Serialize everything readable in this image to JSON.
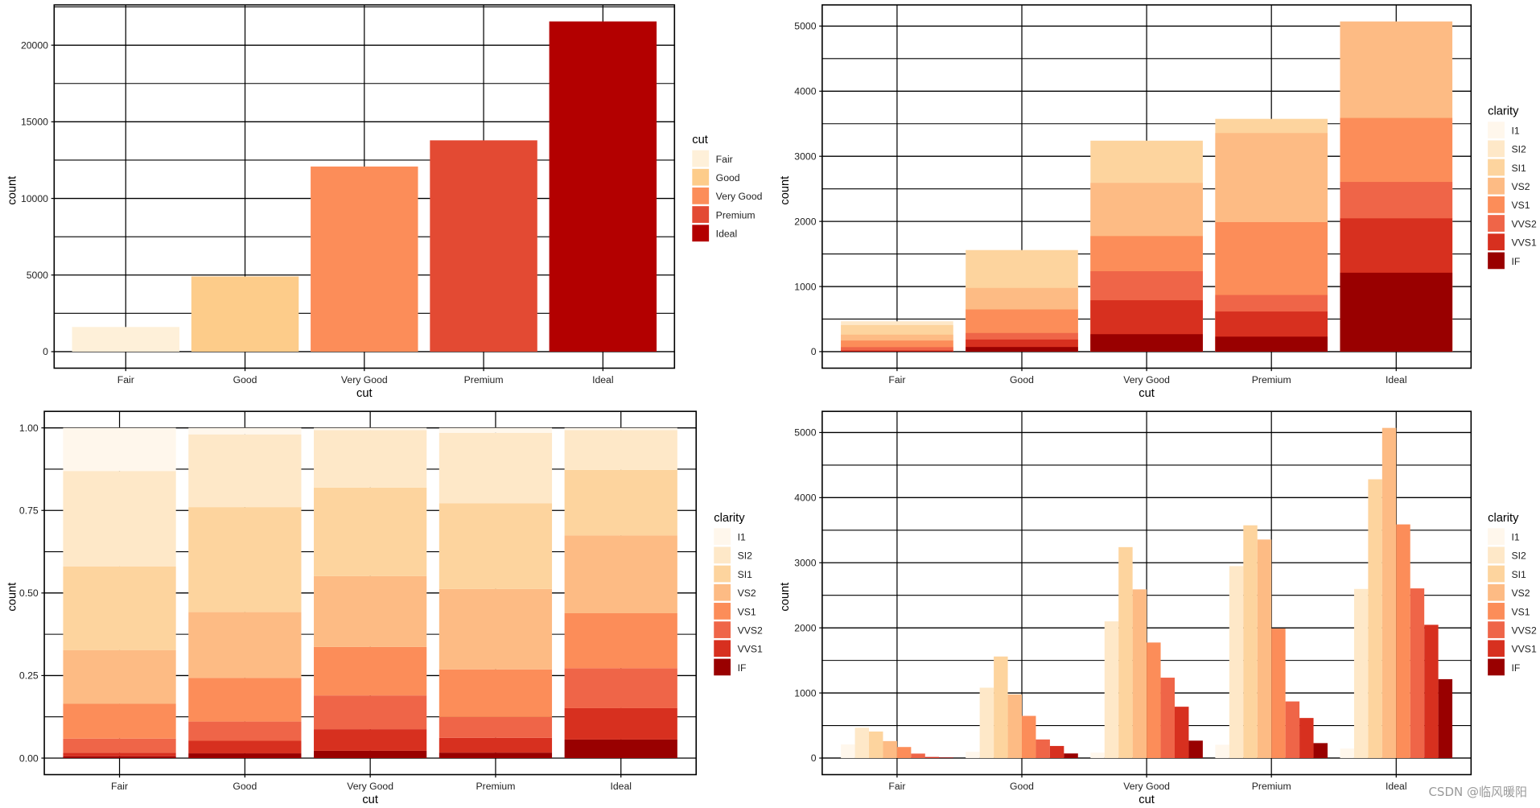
{
  "palette_cut": [
    "#FEF0D9",
    "#FDCC8A",
    "#FC8D59",
    "#E34A33",
    "#B30000"
  ],
  "palette_clarity": [
    "#FFF7EC",
    "#FEE8C8",
    "#FDD49E",
    "#FDBB84",
    "#FC8D59",
    "#EF6548",
    "#D7301F",
    "#990000"
  ],
  "watermark": "CSDN @临风暖阳",
  "chart_data": [
    {
      "type": "bar",
      "position": "stack",
      "xlabel": "cut",
      "ylabel": "count",
      "legend_title": "cut",
      "legend_placement": "right",
      "categories": [
        "Fair",
        "Good",
        "Very Good",
        "Premium",
        "Ideal"
      ],
      "values": [
        1610,
        4906,
        12082,
        13791,
        21551
      ],
      "yticks": [
        0,
        5000,
        10000,
        15000,
        20000
      ],
      "ylim": [
        -1078,
        22629
      ],
      "grid": true
    },
    {
      "type": "bar",
      "position": "identity",
      "xlabel": "cut",
      "ylabel": "count",
      "legend_title": "clarity",
      "legend_placement": "right",
      "categories": [
        "Fair",
        "Good",
        "Very Good",
        "Premium",
        "Ideal"
      ],
      "yticks": [
        0,
        1000,
        2000,
        3000,
        4000,
        5000
      ],
      "ylim": [
        -254,
        5325
      ],
      "grid": true,
      "series": [
        {
          "name": "I1",
          "values": [
            210,
            96,
            84,
            205,
            146
          ]
        },
        {
          "name": "SI2",
          "values": [
            466,
            1081,
            2100,
            2949,
            2598
          ]
        },
        {
          "name": "SI1",
          "values": [
            408,
            1560,
            3240,
            3575,
            4282
          ]
        },
        {
          "name": "VS2",
          "values": [
            261,
            978,
            2591,
            3357,
            5071
          ]
        },
        {
          "name": "VS1",
          "values": [
            170,
            648,
            1775,
            1989,
            3589
          ]
        },
        {
          "name": "VVS2",
          "values": [
            69,
            286,
            1235,
            870,
            2606
          ]
        },
        {
          "name": "VVS1",
          "values": [
            17,
            186,
            789,
            616,
            2047
          ]
        },
        {
          "name": "IF",
          "values": [
            9,
            71,
            268,
            230,
            1212
          ]
        }
      ]
    },
    {
      "type": "bar",
      "position": "fill",
      "xlabel": "cut",
      "ylabel": "count",
      "legend_title": "clarity",
      "legend_placement": "right",
      "categories": [
        "Fair",
        "Good",
        "Very Good",
        "Premium",
        "Ideal"
      ],
      "yticks": [
        0,
        0.25,
        0.5,
        0.75,
        1
      ],
      "ytick_labels": [
        "0.00",
        "0.25",
        "0.50",
        "0.75",
        "1.00"
      ],
      "ylim": [
        -0.05,
        1.05
      ],
      "grid": true,
      "series": [
        {
          "name": "I1",
          "values": [
            210,
            96,
            84,
            205,
            146
          ]
        },
        {
          "name": "SI2",
          "values": [
            466,
            1081,
            2100,
            2949,
            2598
          ]
        },
        {
          "name": "SI1",
          "values": [
            408,
            1560,
            3240,
            3575,
            4282
          ]
        },
        {
          "name": "VS2",
          "values": [
            261,
            978,
            2591,
            3357,
            5071
          ]
        },
        {
          "name": "VS1",
          "values": [
            170,
            648,
            1775,
            1989,
            3589
          ]
        },
        {
          "name": "VVS2",
          "values": [
            69,
            286,
            1235,
            870,
            2606
          ]
        },
        {
          "name": "VVS1",
          "values": [
            17,
            186,
            789,
            616,
            2047
          ]
        },
        {
          "name": "IF",
          "values": [
            9,
            71,
            268,
            230,
            1212
          ]
        }
      ]
    },
    {
      "type": "bar",
      "position": "dodge",
      "xlabel": "cut",
      "ylabel": "count",
      "legend_title": "clarity",
      "legend_placement": "right",
      "categories": [
        "Fair",
        "Good",
        "Very Good",
        "Premium",
        "Ideal"
      ],
      "yticks": [
        0,
        1000,
        2000,
        3000,
        4000,
        5000
      ],
      "ylim": [
        -254,
        5325
      ],
      "grid": true,
      "series": [
        {
          "name": "I1",
          "values": [
            210,
            96,
            84,
            205,
            146
          ]
        },
        {
          "name": "SI2",
          "values": [
            466,
            1081,
            2100,
            2949,
            2598
          ]
        },
        {
          "name": "SI1",
          "values": [
            408,
            1560,
            3240,
            3575,
            4282
          ]
        },
        {
          "name": "VS2",
          "values": [
            261,
            978,
            2591,
            3357,
            5071
          ]
        },
        {
          "name": "VS1",
          "values": [
            170,
            648,
            1775,
            1989,
            3589
          ]
        },
        {
          "name": "VVS2",
          "values": [
            69,
            286,
            1235,
            870,
            2606
          ]
        },
        {
          "name": "VVS1",
          "values": [
            17,
            186,
            789,
            616,
            2047
          ]
        },
        {
          "name": "IF",
          "values": [
            9,
            71,
            268,
            230,
            1212
          ]
        }
      ]
    }
  ]
}
